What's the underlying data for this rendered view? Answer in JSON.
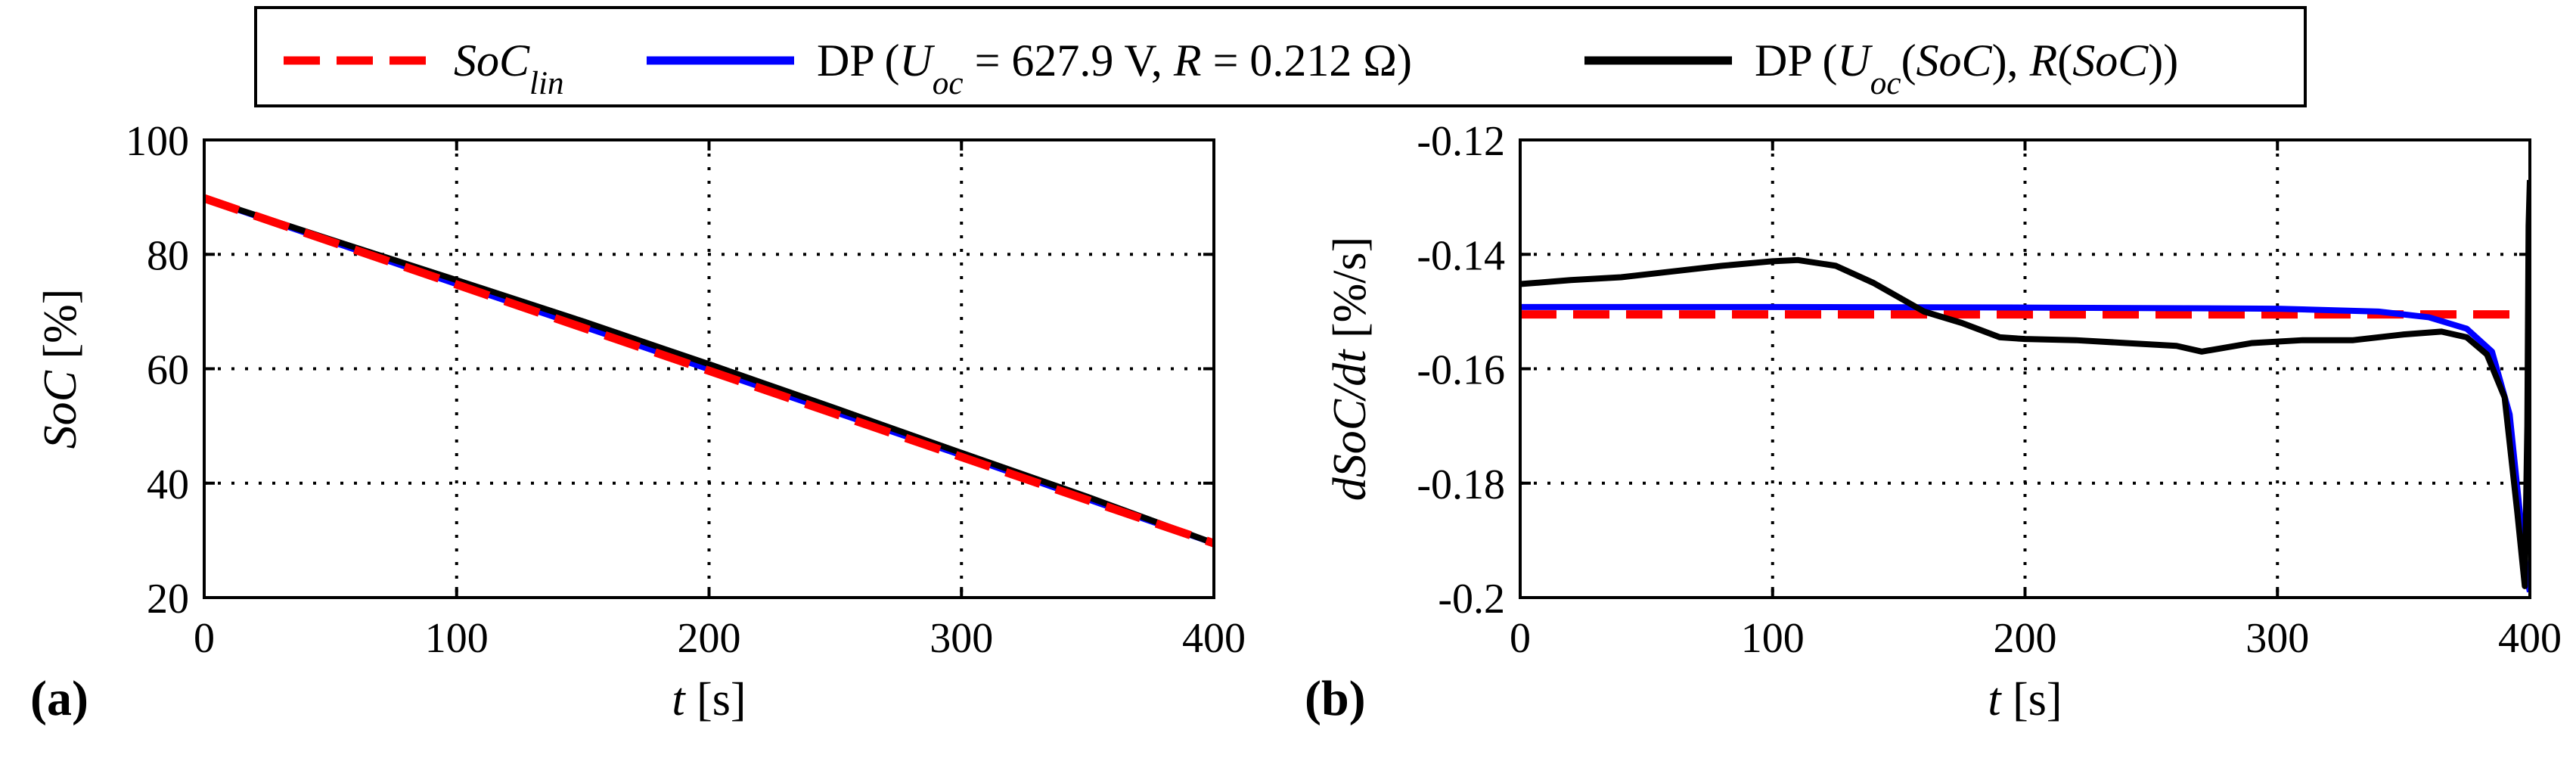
{
  "legend": {
    "entries": [
      {
        "name": "soc-lin",
        "color": "#ff0000",
        "dashed": true,
        "parts": [
          {
            "t": "SoC",
            "i": true
          },
          {
            "t": "lin",
            "i": true,
            "sub": true
          }
        ]
      },
      {
        "name": "dp-const",
        "color": "#0000ff",
        "dashed": false,
        "parts": [
          {
            "t": "DP ("
          },
          {
            "t": "U",
            "i": true
          },
          {
            "t": "oc",
            "i": true,
            "sub": true
          },
          {
            "t": " = 627.9 V, "
          },
          {
            "t": "R",
            "i": true
          },
          {
            "t": " = 0.212 Ω)"
          }
        ]
      },
      {
        "name": "dp-var",
        "color": "#000000",
        "dashed": false,
        "parts": [
          {
            "t": "DP ("
          },
          {
            "t": "U",
            "i": true
          },
          {
            "t": "oc",
            "i": true,
            "sub": true
          },
          {
            "t": "("
          },
          {
            "t": "SoC",
            "i": true
          },
          {
            "t": "), "
          },
          {
            "t": "R",
            "i": true
          },
          {
            "t": "("
          },
          {
            "t": "SoC",
            "i": true
          },
          {
            "t": "))"
          }
        ]
      }
    ]
  },
  "chart_data": [
    {
      "type": "line",
      "panel_label": "(a)",
      "xlabel": {
        "var": "t",
        "unit": " [s]"
      },
      "ylabel": {
        "var": "SoC",
        "unit": " [%]"
      },
      "xlim": [
        0,
        400
      ],
      "ylim": [
        20,
        100
      ],
      "xticks": [
        0,
        100,
        200,
        300,
        400
      ],
      "yticks": [
        20,
        40,
        60,
        80,
        100
      ],
      "grid": true,
      "series": [
        {
          "name": "SoC_lin",
          "color": "#ff0000",
          "dashed": true,
          "x": [
            0,
            400
          ],
          "y": [
            89.8,
            29.5
          ]
        },
        {
          "name": "DP (U_oc = 627.9 V, R = 0.212 Ω)",
          "color": "#0000ff",
          "dashed": false,
          "x": [
            0,
            50,
            100,
            150,
            200,
            250,
            300,
            350,
            400
          ],
          "y": [
            89.8,
            82.3,
            74.8,
            67.4,
            59.9,
            52.4,
            44.9,
            37.2,
            29.5
          ]
        },
        {
          "name": "DP (U_oc(SoC), R(SoC))",
          "color": "#000000",
          "dashed": false,
          "x": [
            0,
            50,
            100,
            150,
            200,
            250,
            300,
            350,
            400
          ],
          "y": [
            89.8,
            82.6,
            75.5,
            68.3,
            60.8,
            53.1,
            45.3,
            37.6,
            29.5
          ]
        }
      ]
    },
    {
      "type": "line",
      "panel_label": "(b)",
      "xlabel": {
        "var": "t",
        "unit": " [s]"
      },
      "ylabel": {
        "var": "dSoC/dt",
        "unit": " [%/s]"
      },
      "xlim": [
        0,
        400
      ],
      "ylim": [
        -0.2,
        -0.12
      ],
      "xticks": [
        0,
        100,
        200,
        300,
        400
      ],
      "yticks": [
        -0.2,
        -0.18,
        -0.16,
        -0.14,
        -0.12
      ],
      "ytick_labels": [
        "-0.2",
        "-0.18",
        "-0.16",
        "-0.14",
        "-0.12"
      ],
      "grid": true,
      "series": [
        {
          "name": "SoC_lin",
          "color": "#ff0000",
          "dashed": true,
          "x": [
            0,
            400
          ],
          "y": [
            -0.1505,
            -0.1505
          ]
        },
        {
          "name": "DP (U_oc = 627.9 V, R = 0.212 Ω)",
          "color": "#0000ff",
          "dashed": false,
          "x": [
            0,
            100,
            200,
            300,
            340,
            360,
            375,
            385,
            392,
            396,
            399,
            400
          ],
          "y": [
            -0.1492,
            -0.1492,
            -0.1493,
            -0.1495,
            -0.15,
            -0.151,
            -0.153,
            -0.157,
            -0.168,
            -0.185,
            -0.197,
            -0.199
          ]
        },
        {
          "name": "DP (U_oc(SoC), R(SoC))",
          "color": "#000000",
          "dashed": false,
          "x": [
            0,
            20,
            40,
            60,
            80,
            100,
            110,
            125,
            140,
            160,
            175,
            190,
            200,
            220,
            240,
            260,
            270,
            290,
            310,
            330,
            350,
            365,
            375,
            383,
            390,
            395,
            398,
            399,
            399.5,
            400
          ],
          "y": [
            -0.1452,
            -0.1445,
            -0.144,
            -0.143,
            -0.142,
            -0.1412,
            -0.141,
            -0.142,
            -0.145,
            -0.15,
            -0.152,
            -0.1545,
            -0.1548,
            -0.155,
            -0.1555,
            -0.156,
            -0.157,
            -0.1555,
            -0.155,
            -0.155,
            -0.154,
            -0.1535,
            -0.1545,
            -0.1575,
            -0.165,
            -0.185,
            -0.198,
            -0.17,
            -0.135,
            -0.127
          ]
        }
      ]
    }
  ]
}
